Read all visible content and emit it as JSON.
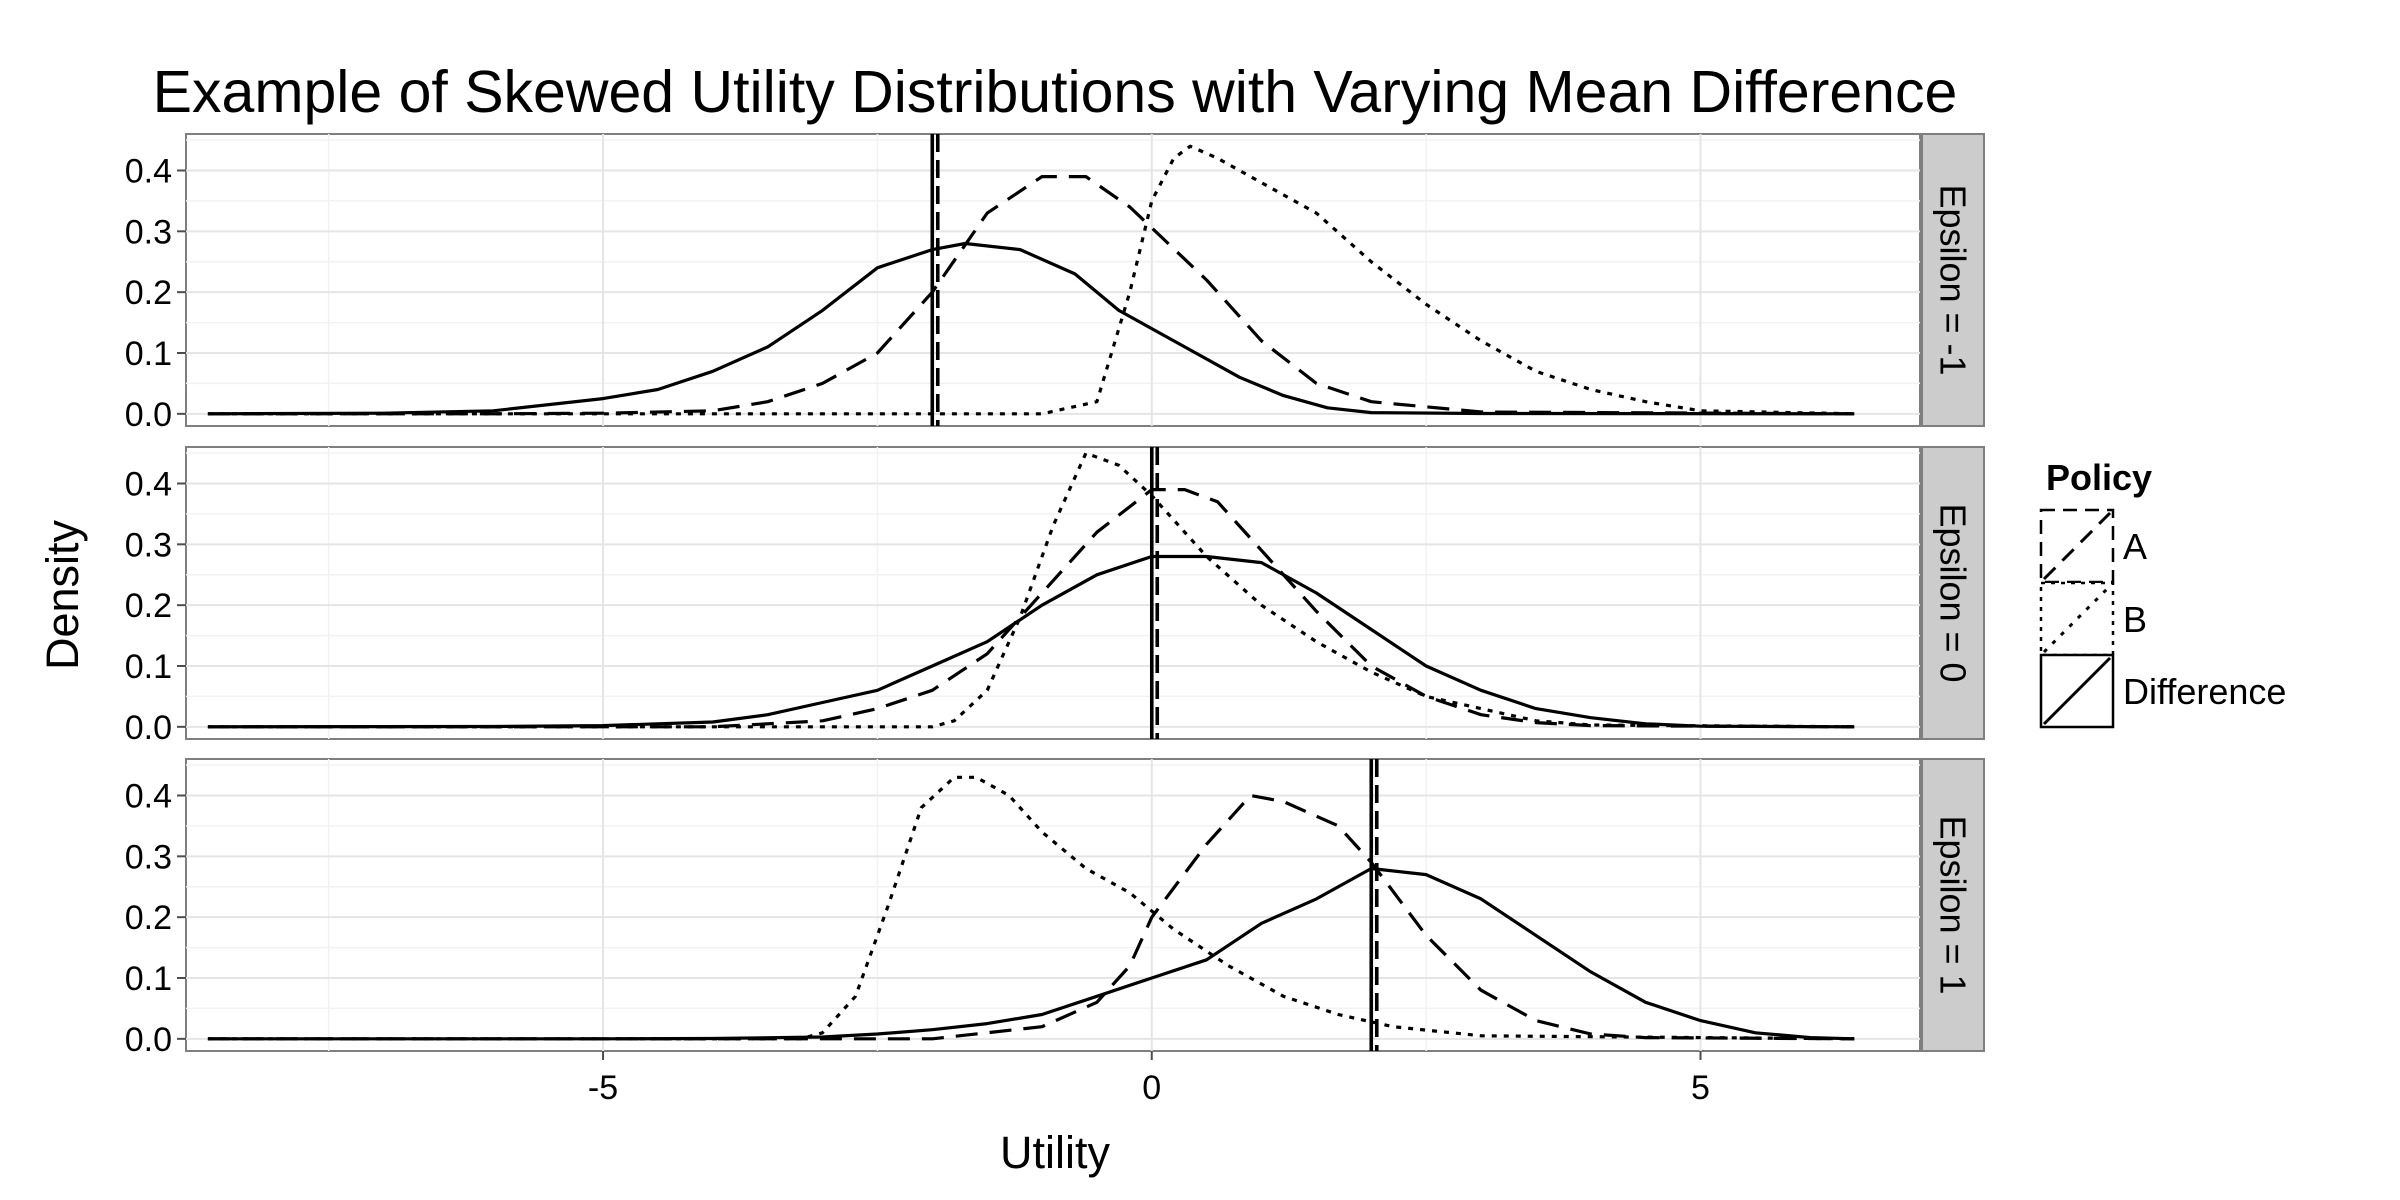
{
  "chart_data": {
    "type": "line",
    "title": "Example of Skewed Utility Distributions with Varying Mean Difference",
    "xlabel": "Utility",
    "ylabel": "Density",
    "xlim": [
      -8.8,
      7.0
    ],
    "ylim": [
      -0.02,
      0.46
    ],
    "x_ticks": [
      -5,
      0,
      5
    ],
    "x_tick_labels": [
      "-5",
      "0",
      "5"
    ],
    "y_ticks": [
      0.0,
      0.1,
      0.2,
      0.3,
      0.4
    ],
    "y_tick_labels": [
      "0.0",
      "0.1",
      "0.2",
      "0.3",
      "0.4"
    ],
    "grid": true,
    "legend": {
      "title": "Policy",
      "position": "right",
      "entries": [
        {
          "label": "A",
          "linetype": "dashed"
        },
        {
          "label": "B",
          "linetype": "dotted"
        },
        {
          "label": "Difference",
          "linetype": "solid"
        }
      ]
    },
    "panels": [
      {
        "strip": "Epsilon = -1",
        "series": [
          {
            "name": "A",
            "linetype": "dashed",
            "mean": -1.95,
            "x": [
              -8.6,
              -6,
              -5,
              -4,
              -3.5,
              -3,
              -2.5,
              -2,
              -1.5,
              -1,
              -0.6,
              -0.2,
              0.5,
              1,
              1.5,
              2,
              3,
              6.4
            ],
            "y": [
              0,
              0,
              0.001,
              0.005,
              0.02,
              0.05,
              0.1,
              0.2,
              0.33,
              0.39,
              0.39,
              0.34,
              0.22,
              0.12,
              0.05,
              0.02,
              0.003,
              0
            ]
          },
          {
            "name": "B",
            "linetype": "dotted",
            "mean": -1.95,
            "x": [
              -8.6,
              -1,
              -0.5,
              -0.2,
              0,
              0.2,
              0.35,
              0.6,
              1,
              1.5,
              2,
              2.5,
              3,
              3.5,
              4,
              4.5,
              5,
              6.4
            ],
            "y": [
              0,
              0,
              0.02,
              0.2,
              0.35,
              0.42,
              0.44,
              0.42,
              0.38,
              0.33,
              0.25,
              0.18,
              0.12,
              0.07,
              0.04,
              0.02,
              0.005,
              0
            ]
          },
          {
            "name": "Difference",
            "linetype": "solid",
            "mean": -2.0,
            "x": [
              -8.6,
              -7,
              -6,
              -5,
              -4.5,
              -4,
              -3.5,
              -3,
              -2.5,
              -2,
              -1.7,
              -1.2,
              -0.7,
              -0.3,
              0.3,
              0.8,
              1.2,
              1.6,
              2,
              3,
              6.4
            ],
            "y": [
              0,
              0.001,
              0.005,
              0.025,
              0.04,
              0.07,
              0.11,
              0.17,
              0.24,
              0.27,
              0.28,
              0.27,
              0.23,
              0.17,
              0.11,
              0.06,
              0.03,
              0.01,
              0.002,
              0.0005,
              0
            ]
          }
        ]
      },
      {
        "strip": "Epsilon = 0",
        "series": [
          {
            "name": "A",
            "linetype": "dashed",
            "mean": 0.05,
            "x": [
              -8.6,
              -4,
              -3,
              -2.5,
              -2,
              -1.5,
              -1,
              -0.5,
              0,
              0.3,
              0.6,
              1,
              1.5,
              2,
              2.5,
              3,
              3.5,
              4,
              6.4
            ],
            "y": [
              0,
              0,
              0.01,
              0.03,
              0.06,
              0.12,
              0.22,
              0.32,
              0.39,
              0.39,
              0.37,
              0.29,
              0.19,
              0.1,
              0.05,
              0.02,
              0.007,
              0.002,
              0
            ]
          },
          {
            "name": "B",
            "linetype": "dotted",
            "mean": 0.05,
            "x": [
              -8.6,
              -2,
              -1.8,
              -1.5,
              -1.2,
              -0.9,
              -0.6,
              -0.3,
              0,
              0.5,
              1,
              1.5,
              2,
              2.5,
              3,
              3.5,
              4,
              6.4
            ],
            "y": [
              0,
              0,
              0.01,
              0.06,
              0.18,
              0.33,
              0.45,
              0.43,
              0.38,
              0.28,
              0.2,
              0.14,
              0.09,
              0.05,
              0.03,
              0.01,
              0.003,
              0
            ]
          },
          {
            "name": "Difference",
            "linetype": "solid",
            "mean": 0.0,
            "x": [
              -8.6,
              -6,
              -5,
              -4,
              -3.5,
              -3,
              -2.5,
              -2,
              -1.5,
              -1,
              -0.5,
              0,
              0.5,
              1,
              1.5,
              2,
              2.5,
              3,
              3.5,
              4,
              4.5,
              5,
              6.4
            ],
            "y": [
              0,
              0.0005,
              0.002,
              0.008,
              0.02,
              0.04,
              0.06,
              0.1,
              0.14,
              0.2,
              0.25,
              0.28,
              0.28,
              0.27,
              0.22,
              0.16,
              0.1,
              0.06,
              0.03,
              0.015,
              0.005,
              0.001,
              0
            ]
          }
        ]
      },
      {
        "strip": "Epsilon = 1",
        "series": [
          {
            "name": "A",
            "linetype": "dashed",
            "mean": 2.05,
            "x": [
              -8.6,
              -2,
              -1,
              -0.5,
              -0.2,
              0,
              0.5,
              0.9,
              1.2,
              1.7,
              2,
              2.5,
              3,
              3.5,
              4,
              4.5,
              6.4
            ],
            "y": [
              0,
              0,
              0.02,
              0.06,
              0.12,
              0.2,
              0.32,
              0.4,
              0.39,
              0.35,
              0.29,
              0.17,
              0.08,
              0.03,
              0.008,
              0.002,
              0
            ]
          },
          {
            "name": "B",
            "linetype": "dotted",
            "mean": 2.05,
            "x": [
              -8.6,
              -3.2,
              -3,
              -2.7,
              -2.4,
              -2.1,
              -1.8,
              -1.6,
              -1.3,
              -1,
              -0.6,
              -0.2,
              0.2,
              0.7,
              1.2,
              1.7,
              2.2,
              3,
              6.4
            ],
            "y": [
              0,
              0,
              0.01,
              0.07,
              0.22,
              0.38,
              0.43,
              0.43,
              0.4,
              0.34,
              0.28,
              0.24,
              0.18,
              0.12,
              0.07,
              0.04,
              0.02,
              0.005,
              0
            ]
          },
          {
            "name": "Difference",
            "linetype": "solid",
            "mean": 2.0,
            "x": [
              -8.6,
              -5,
              -4,
              -3,
              -2.5,
              -2,
              -1.5,
              -1,
              -0.5,
              0,
              0.5,
              1,
              1.5,
              2,
              2.5,
              3,
              3.5,
              4,
              4.5,
              5,
              5.5,
              6,
              6.4
            ],
            "y": [
              0,
              0,
              0.0005,
              0.003,
              0.008,
              0.015,
              0.025,
              0.04,
              0.07,
              0.1,
              0.13,
              0.19,
              0.23,
              0.28,
              0.27,
              0.23,
              0.17,
              0.11,
              0.06,
              0.03,
              0.01,
              0.002,
              0
            ]
          }
        ]
      }
    ]
  }
}
